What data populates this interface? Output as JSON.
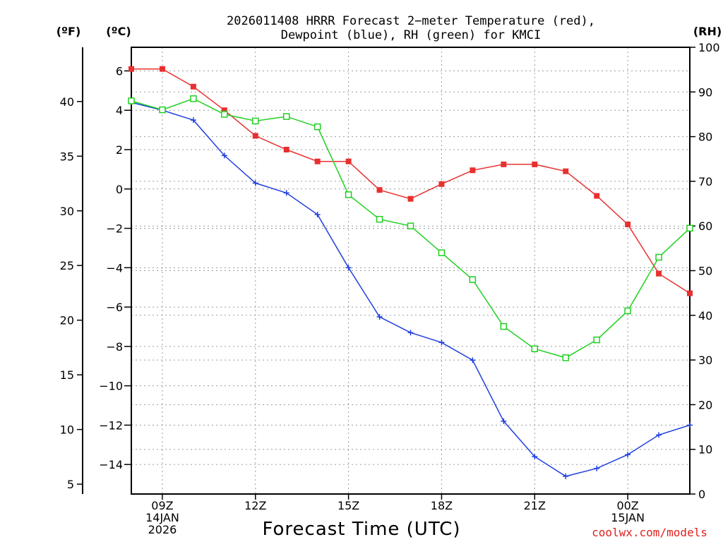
{
  "chart_data": {
    "type": "line",
    "title_lines": [
      "2026011408 HRRR Forecast 2−meter Temperature (red),",
      "Dewpoint (blue), RH (green) for KMCI"
    ],
    "xlabel": "Forecast Time (UTC)",
    "units": {
      "left_outer": "(ºF)",
      "left_inner": "(ºC)",
      "right": "(RH)"
    },
    "hours": [
      8,
      9,
      10,
      11,
      12,
      13,
      14,
      15,
      16,
      17,
      18,
      19,
      20,
      21,
      22,
      23,
      24,
      25,
      26
    ],
    "x_ticks": [
      {
        "hour": 9,
        "lines": [
          "09Z",
          "14JAN",
          "2026"
        ]
      },
      {
        "hour": 12,
        "lines": [
          "12Z"
        ]
      },
      {
        "hour": 15,
        "lines": [
          "15Z"
        ]
      },
      {
        "hour": 18,
        "lines": [
          "18Z"
        ]
      },
      {
        "hour": 21,
        "lines": [
          "21Z"
        ]
      },
      {
        "hour": 24,
        "lines": [
          "00Z",
          "15JAN"
        ]
      }
    ],
    "x_range": [
      8,
      26
    ],
    "celsius_range": [
      -15.5,
      7.2
    ],
    "rh_range": [
      0,
      100
    ],
    "celsius_ticks": [
      6,
      4,
      2,
      0,
      -2,
      -4,
      -6,
      -8,
      -10,
      -12,
      -14
    ],
    "celsius_tick_labels": [
      "6",
      "4",
      "2",
      "0",
      "−2",
      "−4",
      "−6",
      "−8",
      "−10",
      "−12",
      "−14"
    ],
    "fahrenheit_ticks": [
      40,
      35,
      30,
      25,
      20,
      15,
      10,
      5
    ],
    "rh_ticks": [
      100,
      90,
      80,
      70,
      60,
      50,
      40,
      30,
      20,
      10,
      0
    ],
    "series": [
      {
        "name": "Temperature",
        "unit": "C",
        "color": "#e83030",
        "marker": "filled-square",
        "values": [
          6.1,
          6.1,
          5.2,
          4.0,
          2.7,
          2.0,
          1.4,
          1.4,
          -0.05,
          -0.5,
          0.25,
          0.95,
          1.25,
          1.25,
          0.9,
          -0.35,
          -1.8,
          -4.3,
          -5.3
        ]
      },
      {
        "name": "Dewpoint",
        "unit": "C",
        "color": "#2040e0",
        "marker": "plus",
        "values": [
          4.4,
          4.0,
          3.5,
          1.7,
          0.3,
          -0.2,
          -1.3,
          -4.0,
          -6.5,
          -7.3,
          -7.8,
          -8.7,
          -11.8,
          -13.6,
          -14.6,
          -14.2,
          -13.5,
          -12.5,
          -12.0
        ]
      },
      {
        "name": "RH",
        "unit": "%",
        "color": "#20d020",
        "marker": "open-square",
        "values": [
          88,
          86,
          88.5,
          85,
          83.5,
          84.5,
          82.2,
          67,
          61.5,
          60,
          54,
          48,
          37.5,
          32.5,
          30.5,
          34.5,
          41,
          53,
          59.5
        ]
      }
    ],
    "grid": true
  },
  "credit": "coolwx.com/models"
}
